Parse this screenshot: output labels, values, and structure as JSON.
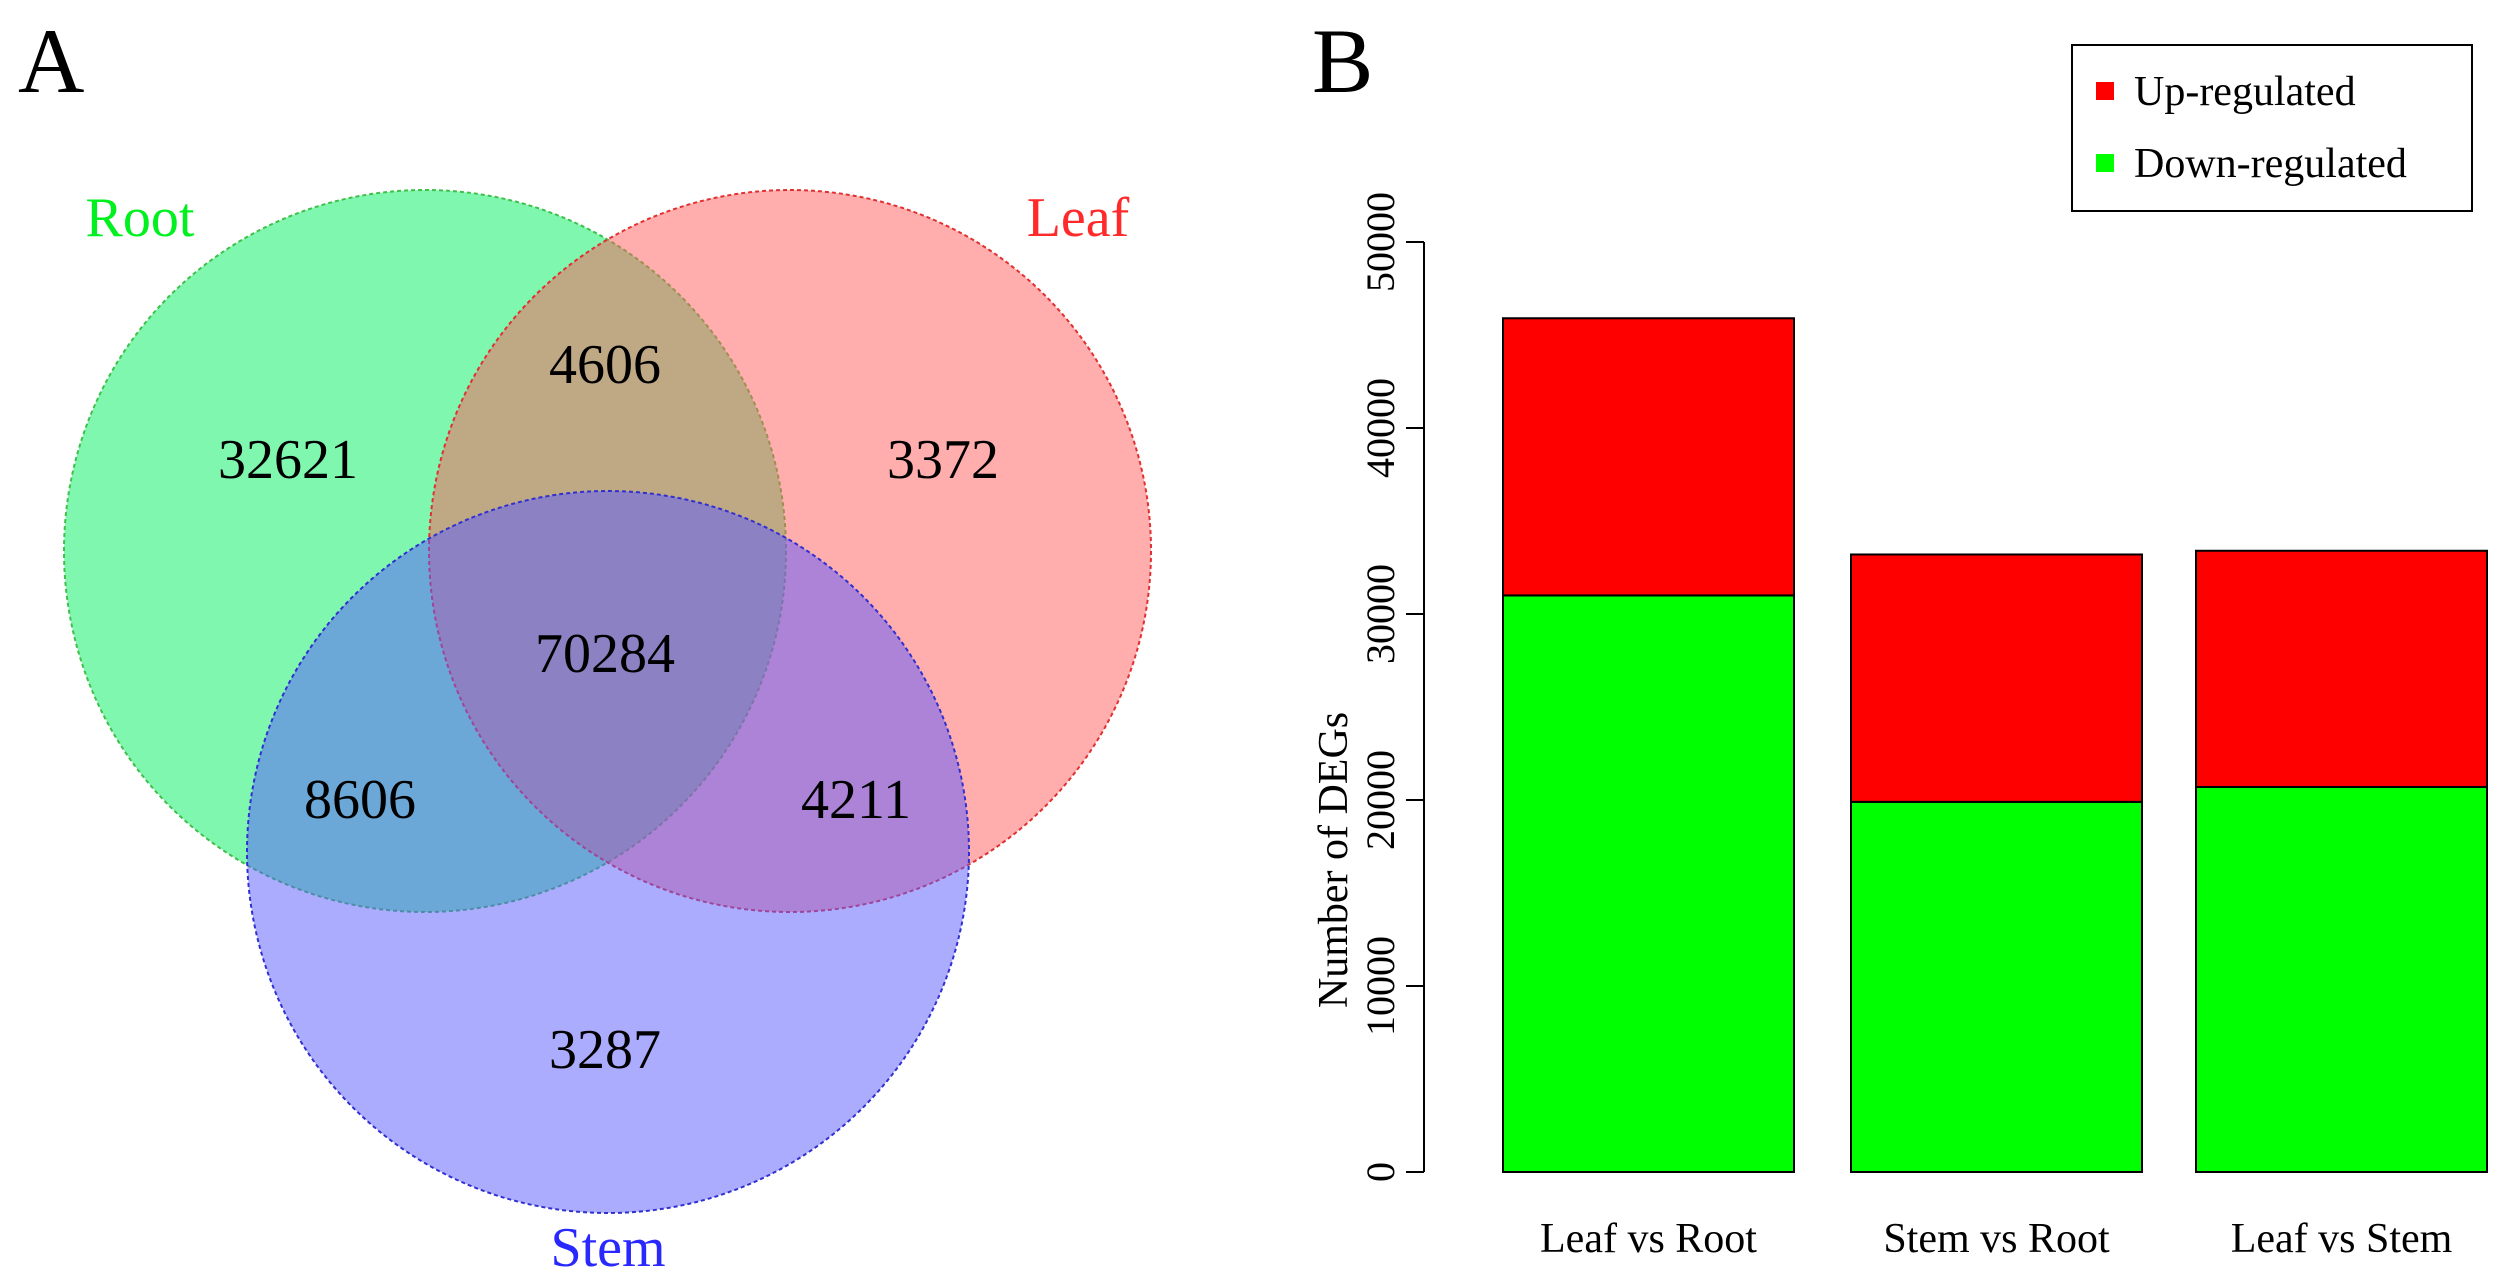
{
  "panels": {
    "a_label": "A",
    "b_label": "B"
  },
  "venn": {
    "sets": [
      {
        "name": "Root",
        "color": "#00f060",
        "label_color": "#00f020",
        "stroke": "#3ec04a"
      },
      {
        "name": "Leaf",
        "color": "#ff5c5c",
        "label_color": "#ff2a2a",
        "stroke": "#e03030"
      },
      {
        "name": "Stem",
        "color": "#5a5aff",
        "label_color": "#2828ff",
        "stroke": "#3030d0"
      }
    ],
    "counts": {
      "root_only": "32621",
      "leaf_only": "3372",
      "stem_only": "3287",
      "root_leaf": "4606",
      "root_stem": "8606",
      "leaf_stem": "4211",
      "all_three": "70284"
    }
  },
  "chart_data": {
    "type": "bar",
    "stacked": true,
    "title": "",
    "xlabel": "",
    "ylabel": "Number of DEGs",
    "categories": [
      "Leaf vs Root",
      "Stem vs Root",
      "Leaf vs Stem"
    ],
    "series": [
      {
        "name": "Down-regulated",
        "color": "#00ff00",
        "values": [
          31000,
          19900,
          20700
        ]
      },
      {
        "name": "Up-regulated",
        "color": "#ff0000",
        "values": [
          14900,
          13300,
          12700
        ]
      }
    ],
    "ylim": [
      0,
      50000
    ],
    "yticks": [
      "0",
      "10000",
      "20000",
      "30000",
      "40000",
      "50000"
    ],
    "legend": {
      "placement": "top-right",
      "entries": [
        {
          "label": "Up-regulated",
          "color": "#ff0000"
        },
        {
          "label": "Down-regulated",
          "color": "#00ff00"
        }
      ]
    }
  }
}
